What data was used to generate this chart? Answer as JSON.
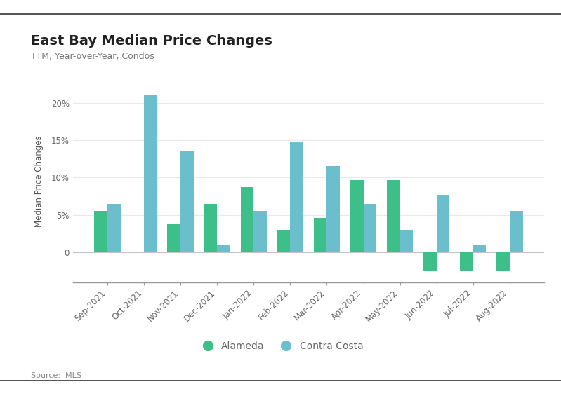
{
  "title": "East Bay Median Price Changes",
  "subtitle": "TTM, Year-over-Year, Condos",
  "source": "Source:  MLS",
  "ylabel": "Median Price Changes",
  "categories": [
    "Sep-2021",
    "Oct-2021",
    "Nov-2021",
    "Dec-2021",
    "Jan-2022",
    "Feb-2022",
    "Mar-2022",
    "Apr-2022",
    "May-2022",
    "Jun-2022",
    "Jul-2022",
    "Aug-2022"
  ],
  "alameda": [
    5.5,
    0.0,
    3.8,
    6.5,
    8.7,
    3.0,
    4.6,
    9.7,
    9.7,
    -2.5,
    -2.5,
    -2.5
  ],
  "contra_costa": [
    6.5,
    21.0,
    13.5,
    1.0,
    5.5,
    14.7,
    11.5,
    6.5,
    3.0,
    7.7,
    1.0,
    5.5
  ],
  "alameda_color": "#3dbf8a",
  "contra_costa_color": "#6bbfcc",
  "background_color": "#ffffff",
  "grid_color": "#e8e8e8",
  "title_color": "#222222",
  "subtitle_color": "#777777",
  "source_color": "#888888",
  "ylabel_color": "#555555",
  "tick_label_color": "#666666",
  "border_color": "#333333",
  "ylim": [
    -4,
    23
  ],
  "yticks": [
    0,
    5,
    10,
    15,
    20
  ],
  "bar_width": 0.36,
  "legend_labels": [
    "Alameda",
    "Contra Costa"
  ]
}
